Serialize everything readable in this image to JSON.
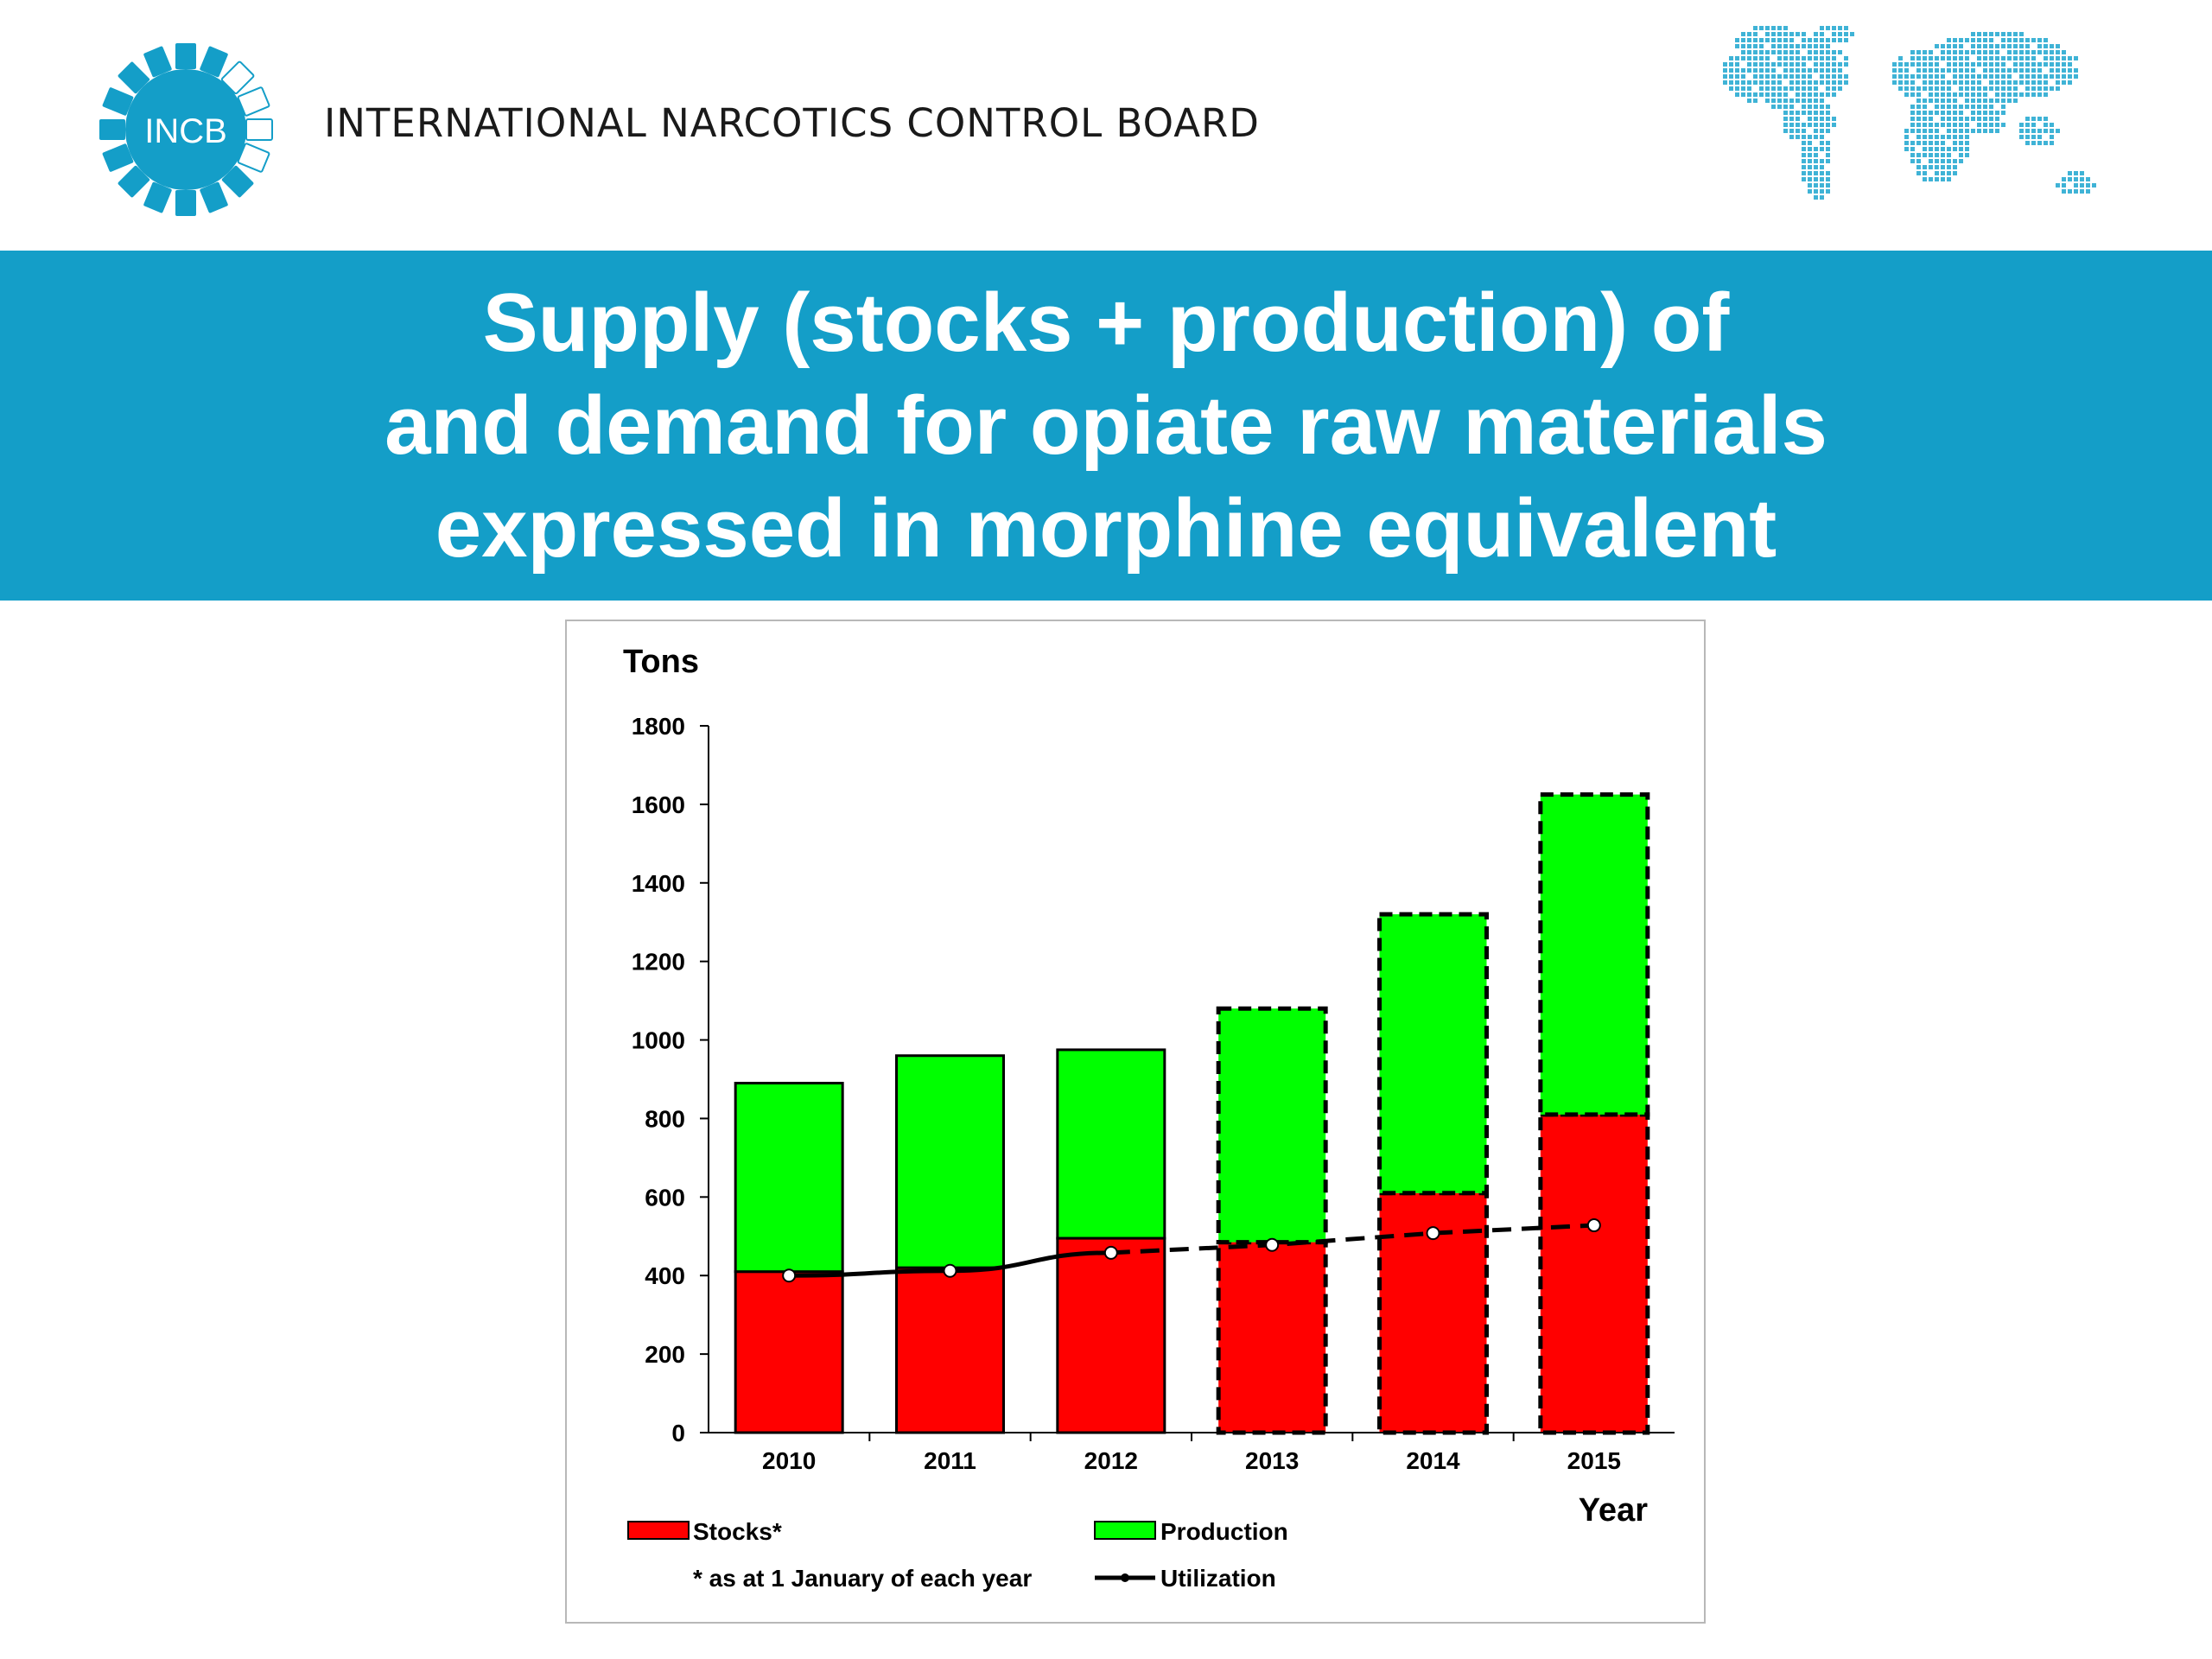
{
  "header": {
    "logo_text": "INCB",
    "org_name": "INTERNATIONAL NARCOTICS CONTROL BOARD",
    "logo_icon": "incb-logo-icon",
    "map_icon": "world-map-icon"
  },
  "title": {
    "lines": [
      "Supply (stocks + production) of",
      "and demand for opiate raw materials",
      "expressed in morphine equivalent"
    ]
  },
  "colors": {
    "brand": "#149ec8",
    "stocks": "#ff0000",
    "production": "#00ff00",
    "utilization": "#000000"
  },
  "chart_data": {
    "type": "bar",
    "stacked": true,
    "ylabel": "Tons",
    "xlabel": "Year",
    "ylim": [
      0,
      1800
    ],
    "yticks": [
      0,
      200,
      400,
      600,
      800,
      1000,
      1200,
      1400,
      1600,
      1800
    ],
    "categories": [
      "2010",
      "2011",
      "2012",
      "2013",
      "2014",
      "2015"
    ],
    "series": [
      {
        "name": "Stocks*",
        "type": "bar",
        "values": [
          410,
          420,
          495,
          485,
          610,
          810
        ]
      },
      {
        "name": "Production",
        "type": "bar",
        "values": [
          480,
          540,
          480,
          595,
          710,
          815
        ]
      },
      {
        "name": "Utilization",
        "type": "line",
        "values": [
          400,
          412,
          458,
          478,
          508,
          528
        ]
      }
    ],
    "estimated_from": "2013",
    "footnote": "* as at 1 January of each year",
    "legend_position": "bottom",
    "grid": false
  }
}
